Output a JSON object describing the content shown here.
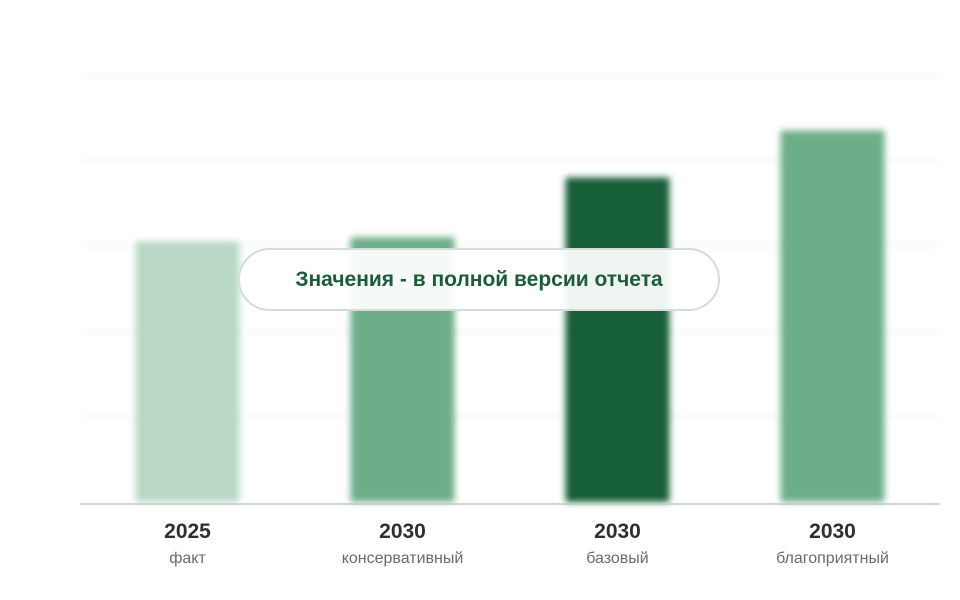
{
  "chart_data": {
    "type": "bar",
    "categories": [
      {
        "year": "2025",
        "label": "факт"
      },
      {
        "year": "2030",
        "label": "консервативный"
      },
      {
        "year": "2030",
        "label": "базовый"
      },
      {
        "year": "2030",
        "label": "благоприятный"
      }
    ],
    "values": [
      61,
      62,
      76,
      87
    ],
    "values_note": "Значения - в полной версии отчета",
    "colors": [
      "#b8d8c5",
      "#6dae8a",
      "#175e37",
      "#6dae8a"
    ],
    "ylim": [
      0,
      100
    ],
    "grid": true,
    "values_hidden": true
  },
  "overlay": {
    "text": "Значения - в полной версии отчета"
  },
  "colors": {
    "grid": "#f0f2f0",
    "axis": "#bfc9c3",
    "overlay_text": "#1d5c3b"
  }
}
